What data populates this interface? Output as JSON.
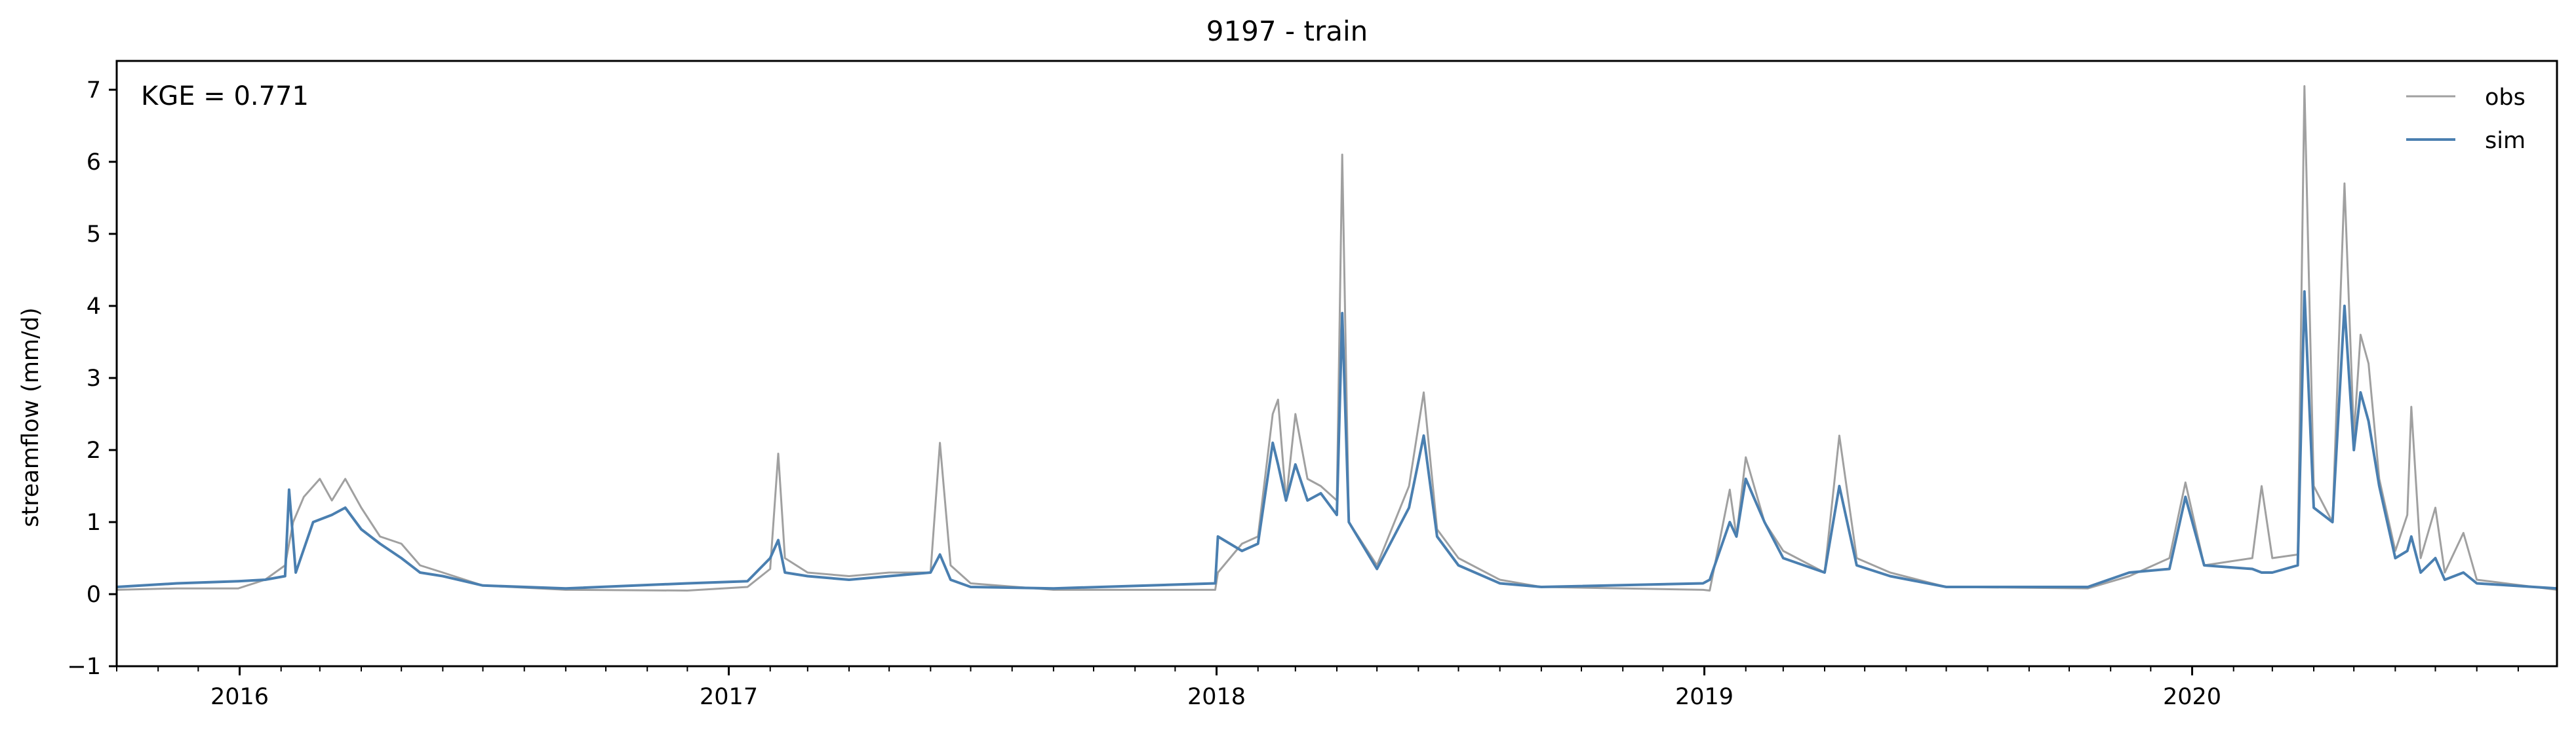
{
  "chart_data": {
    "type": "line",
    "title": "9197 - train",
    "xlabel": "",
    "ylabel": "streamflow (mm/d)",
    "annotation": "KGE = 0.771",
    "xlim": [
      "2015-10-01",
      "2020-09-30"
    ],
    "ylim": [
      -1,
      7.4
    ],
    "yticks": [
      -1,
      0,
      1,
      2,
      3,
      4,
      5,
      6,
      7
    ],
    "ytick_labels": [
      "−1",
      "0",
      "1",
      "2",
      "3",
      "4",
      "5",
      "6",
      "7"
    ],
    "xticks": [
      "2016-01-01",
      "2017-01-01",
      "2018-01-01",
      "2019-01-01",
      "2020-01-01"
    ],
    "xtick_labels": [
      "2016",
      "2017",
      "2018",
      "2019",
      "2020"
    ],
    "minor_xticks": "monthly",
    "grid": false,
    "legend_position": "top-right",
    "series": [
      {
        "name": "obs",
        "color": "#a0a0a0",
        "points": [
          [
            "2015-10-01",
            0.06
          ],
          [
            "2015-11-15",
            0.08
          ],
          [
            "2015-12-31",
            0.08
          ],
          [
            "2016-01-20",
            0.2
          ],
          [
            "2016-02-04",
            0.4
          ],
          [
            "2016-02-10",
            1.0
          ],
          [
            "2016-02-18",
            1.35
          ],
          [
            "2016-03-01",
            1.6
          ],
          [
            "2016-03-10",
            1.3
          ],
          [
            "2016-03-20",
            1.6
          ],
          [
            "2016-04-01",
            1.2
          ],
          [
            "2016-04-15",
            0.8
          ],
          [
            "2016-05-01",
            0.7
          ],
          [
            "2016-05-15",
            0.4
          ],
          [
            "2016-06-01",
            0.3
          ],
          [
            "2016-07-01",
            0.12
          ],
          [
            "2016-09-01",
            0.06
          ],
          [
            "2016-12-01",
            0.05
          ],
          [
            "2017-01-15",
            0.1
          ],
          [
            "2017-02-01",
            0.35
          ],
          [
            "2017-02-07",
            1.95
          ],
          [
            "2017-02-12",
            0.5
          ],
          [
            "2017-03-01",
            0.3
          ],
          [
            "2017-04-01",
            0.25
          ],
          [
            "2017-05-01",
            0.3
          ],
          [
            "2017-06-01",
            0.3
          ],
          [
            "2017-06-08",
            2.1
          ],
          [
            "2017-06-16",
            0.4
          ],
          [
            "2017-07-01",
            0.15
          ],
          [
            "2017-09-01",
            0.06
          ],
          [
            "2017-12-31",
            0.06
          ],
          [
            "2018-01-02",
            0.3
          ],
          [
            "2018-01-20",
            0.7
          ],
          [
            "2018-02-01",
            0.8
          ],
          [
            "2018-02-12",
            2.5
          ],
          [
            "2018-02-16",
            2.7
          ],
          [
            "2018-02-22",
            1.3
          ],
          [
            "2018-03-01",
            2.5
          ],
          [
            "2018-03-10",
            1.6
          ],
          [
            "2018-03-20",
            1.5
          ],
          [
            "2018-04-01",
            1.3
          ],
          [
            "2018-04-05",
            6.1
          ],
          [
            "2018-04-10",
            1.0
          ],
          [
            "2018-05-01",
            0.4
          ],
          [
            "2018-05-25",
            1.5
          ],
          [
            "2018-06-05",
            2.8
          ],
          [
            "2018-06-15",
            0.9
          ],
          [
            "2018-07-01",
            0.5
          ],
          [
            "2018-08-01",
            0.2
          ],
          [
            "2018-09-01",
            0.1
          ],
          [
            "2018-12-31",
            0.06
          ],
          [
            "2019-01-05",
            0.05
          ],
          [
            "2019-01-20",
            1.45
          ],
          [
            "2019-01-25",
            0.8
          ],
          [
            "2019-02-01",
            1.9
          ],
          [
            "2019-02-15",
            1.0
          ],
          [
            "2019-03-01",
            0.6
          ],
          [
            "2019-04-01",
            0.3
          ],
          [
            "2019-04-12",
            2.2
          ],
          [
            "2019-04-25",
            0.5
          ],
          [
            "2019-05-20",
            0.3
          ],
          [
            "2019-07-01",
            0.1
          ],
          [
            "2019-10-15",
            0.08
          ],
          [
            "2019-11-15",
            0.25
          ],
          [
            "2019-12-15",
            0.5
          ],
          [
            "2019-12-27",
            1.55
          ],
          [
            "2020-01-10",
            0.4
          ],
          [
            "2020-02-15",
            0.5
          ],
          [
            "2020-02-22",
            1.5
          ],
          [
            "2020-03-01",
            0.5
          ],
          [
            "2020-03-20",
            0.55
          ],
          [
            "2020-03-25",
            7.05
          ],
          [
            "2020-04-01",
            1.5
          ],
          [
            "2020-04-15",
            1.0
          ],
          [
            "2020-04-24",
            5.7
          ],
          [
            "2020-05-01",
            2.2
          ],
          [
            "2020-05-06",
            3.6
          ],
          [
            "2020-05-12",
            3.2
          ],
          [
            "2020-05-20",
            1.6
          ],
          [
            "2020-06-01",
            0.6
          ],
          [
            "2020-06-10",
            1.1
          ],
          [
            "2020-06-13",
            2.6
          ],
          [
            "2020-06-20",
            0.5
          ],
          [
            "2020-07-01",
            1.2
          ],
          [
            "2020-07-08",
            0.3
          ],
          [
            "2020-07-22",
            0.85
          ],
          [
            "2020-08-01",
            0.2
          ],
          [
            "2020-09-30",
            0.06
          ]
        ]
      },
      {
        "name": "sim",
        "color": "#4a7fb0",
        "points": [
          [
            "2015-10-01",
            0.1
          ],
          [
            "2015-11-15",
            0.15
          ],
          [
            "2015-12-31",
            0.18
          ],
          [
            "2016-01-20",
            0.2
          ],
          [
            "2016-02-04",
            0.25
          ],
          [
            "2016-02-07",
            1.45
          ],
          [
            "2016-02-12",
            0.3
          ],
          [
            "2016-02-25",
            1.0
          ],
          [
            "2016-03-10",
            1.1
          ],
          [
            "2016-03-20",
            1.2
          ],
          [
            "2016-04-01",
            0.9
          ],
          [
            "2016-04-15",
            0.7
          ],
          [
            "2016-05-01",
            0.5
          ],
          [
            "2016-05-15",
            0.3
          ],
          [
            "2016-06-01",
            0.25
          ],
          [
            "2016-07-01",
            0.12
          ],
          [
            "2016-09-01",
            0.08
          ],
          [
            "2016-12-01",
            0.15
          ],
          [
            "2017-01-15",
            0.18
          ],
          [
            "2017-02-01",
            0.5
          ],
          [
            "2017-02-07",
            0.75
          ],
          [
            "2017-02-12",
            0.3
          ],
          [
            "2017-03-01",
            0.25
          ],
          [
            "2017-04-01",
            0.2
          ],
          [
            "2017-05-01",
            0.25
          ],
          [
            "2017-06-01",
            0.3
          ],
          [
            "2017-06-08",
            0.55
          ],
          [
            "2017-06-16",
            0.2
          ],
          [
            "2017-07-01",
            0.1
          ],
          [
            "2017-09-01",
            0.08
          ],
          [
            "2017-12-31",
            0.15
          ],
          [
            "2018-01-02",
            0.8
          ],
          [
            "2018-01-20",
            0.6
          ],
          [
            "2018-02-01",
            0.7
          ],
          [
            "2018-02-12",
            2.1
          ],
          [
            "2018-02-16",
            1.8
          ],
          [
            "2018-02-22",
            1.3
          ],
          [
            "2018-03-01",
            1.8
          ],
          [
            "2018-03-10",
            1.3
          ],
          [
            "2018-03-20",
            1.4
          ],
          [
            "2018-04-01",
            1.1
          ],
          [
            "2018-04-05",
            3.9
          ],
          [
            "2018-04-10",
            1.0
          ],
          [
            "2018-05-01",
            0.35
          ],
          [
            "2018-05-25",
            1.2
          ],
          [
            "2018-06-05",
            2.2
          ],
          [
            "2018-06-15",
            0.8
          ],
          [
            "2018-07-01",
            0.4
          ],
          [
            "2018-08-01",
            0.15
          ],
          [
            "2018-09-01",
            0.1
          ],
          [
            "2018-12-31",
            0.15
          ],
          [
            "2019-01-05",
            0.2
          ],
          [
            "2019-01-20",
            1.0
          ],
          [
            "2019-01-25",
            0.8
          ],
          [
            "2019-02-01",
            1.6
          ],
          [
            "2019-02-15",
            1.0
          ],
          [
            "2019-03-01",
            0.5
          ],
          [
            "2019-04-01",
            0.3
          ],
          [
            "2019-04-12",
            1.5
          ],
          [
            "2019-04-25",
            0.4
          ],
          [
            "2019-05-20",
            0.25
          ],
          [
            "2019-07-01",
            0.1
          ],
          [
            "2019-10-15",
            0.1
          ],
          [
            "2019-11-15",
            0.3
          ],
          [
            "2019-12-15",
            0.35
          ],
          [
            "2019-12-27",
            1.35
          ],
          [
            "2020-01-10",
            0.4
          ],
          [
            "2020-02-15",
            0.35
          ],
          [
            "2020-02-22",
            0.3
          ],
          [
            "2020-03-01",
            0.3
          ],
          [
            "2020-03-20",
            0.4
          ],
          [
            "2020-03-25",
            4.2
          ],
          [
            "2020-04-01",
            1.2
          ],
          [
            "2020-04-15",
            1.0
          ],
          [
            "2020-04-24",
            4.0
          ],
          [
            "2020-05-01",
            2.0
          ],
          [
            "2020-05-06",
            2.8
          ],
          [
            "2020-05-12",
            2.4
          ],
          [
            "2020-05-20",
            1.5
          ],
          [
            "2020-06-01",
            0.5
          ],
          [
            "2020-06-10",
            0.6
          ],
          [
            "2020-06-13",
            0.8
          ],
          [
            "2020-06-20",
            0.3
          ],
          [
            "2020-07-01",
            0.5
          ],
          [
            "2020-07-08",
            0.2
          ],
          [
            "2020-07-22",
            0.3
          ],
          [
            "2020-08-01",
            0.15
          ],
          [
            "2020-09-30",
            0.08
          ]
        ]
      }
    ]
  }
}
